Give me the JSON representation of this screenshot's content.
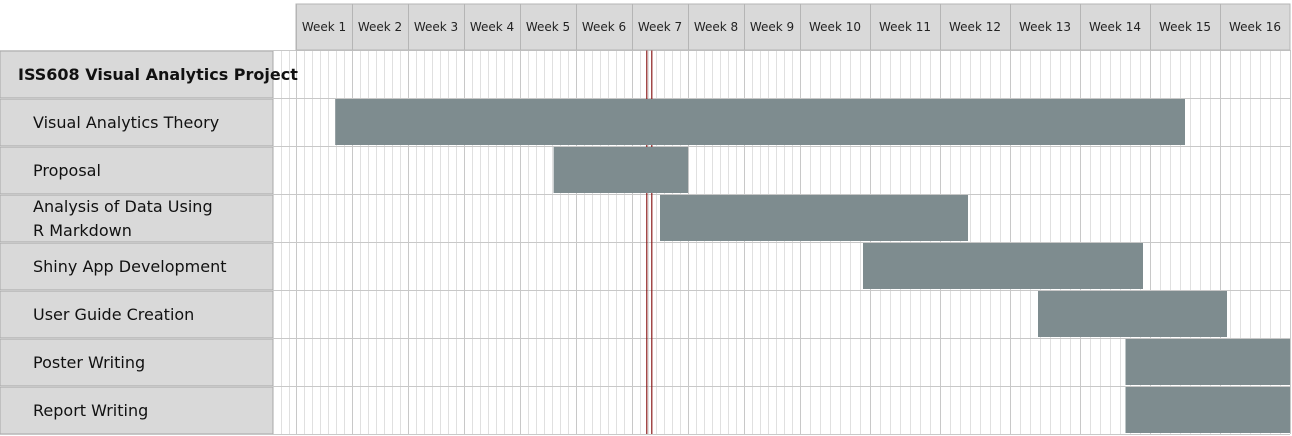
{
  "chart_data": {
    "type": "gantt",
    "title": "ISS608 Visual Analytics Project",
    "x_ticks": [
      "Week 1",
      "Week 2",
      "Week 3",
      "Week 4",
      "Week 5",
      "Week 6",
      "Week 7",
      "Week 8",
      "Week 9",
      "Week 10",
      "Week 11",
      "Week 12",
      "Week 13",
      "Week 14",
      "Week 15",
      "Week 16"
    ],
    "x_unit": "week",
    "xlim": [
      1,
      17
    ],
    "grid": true,
    "current_marker_week": 7.3,
    "tasks": [
      {
        "label_lines": [
          "Visual Analytics Theory"
        ],
        "start": 1.7,
        "end": 15.5
      },
      {
        "label_lines": [
          "Proposal"
        ],
        "start": 5.6,
        "end": 8.0
      },
      {
        "label_lines": [
          "Analysis of Data Using",
          "R Markdown"
        ],
        "start": 7.5,
        "end": 12.4
      },
      {
        "label_lines": [
          "Shiny App Development"
        ],
        "start": 10.9,
        "end": 14.9
      },
      {
        "label_lines": [
          "User Guide Creation"
        ],
        "start": 13.4,
        "end": 16.1
      },
      {
        "label_lines": [
          "Poster Writing"
        ],
        "start": 14.65,
        "end": 17.2
      },
      {
        "label_lines": [
          "Report Writing"
        ],
        "start": 14.65,
        "end": 17.2
      }
    ],
    "colors": {
      "bar": "#7e8c8f",
      "label_bg": "#d9d9d9",
      "header_bg": "#d9d9d9",
      "grid_minor": "#e0e0e0",
      "grid_major": "#c8c8c8",
      "marker": "#8b1a1a"
    }
  }
}
